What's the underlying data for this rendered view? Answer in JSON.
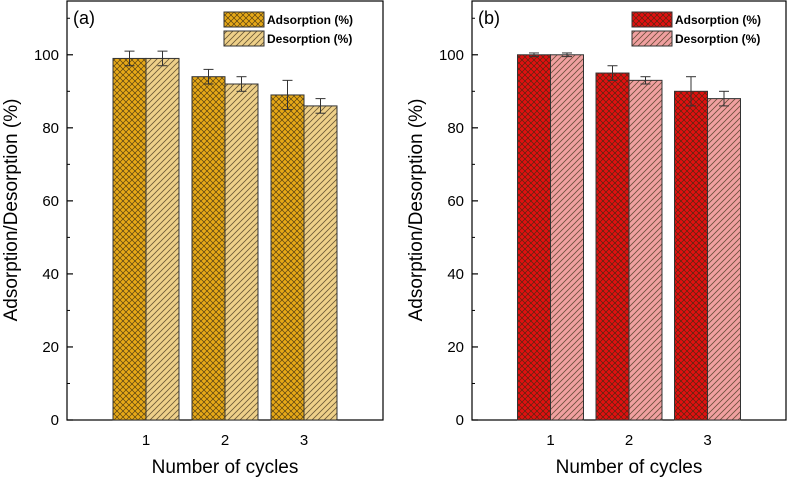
{
  "chart_data": [
    {
      "type": "bar",
      "panel_label": "(a)",
      "categories": [
        "1",
        "2",
        "3"
      ],
      "series": [
        {
          "name": "Adsorption (%)",
          "values": [
            99,
            94,
            89
          ],
          "errors": [
            2,
            2,
            4
          ],
          "color": "#E6A817",
          "pattern": "crosshatch"
        },
        {
          "name": "Desorption (%)",
          "values": [
            99,
            92,
            86
          ],
          "errors": [
            2,
            2,
            2
          ],
          "color": "#EED089",
          "pattern": "diagonal"
        }
      ],
      "xlabel": "Number of cycles",
      "ylabel": "Adsorption/Desorption (%)",
      "ylim": [
        0,
        115
      ],
      "yticks": [
        "0",
        "20",
        "40",
        "60",
        "80",
        "100"
      ],
      "legend": "top-right",
      "grid": false
    },
    {
      "type": "bar",
      "panel_label": "(b)",
      "categories": [
        "1",
        "2",
        "3"
      ],
      "series": [
        {
          "name": "Adsorption (%)",
          "values": [
            100,
            95,
            90
          ],
          "errors": [
            0.5,
            2,
            4
          ],
          "color": "#E01010",
          "pattern": "crosshatch"
        },
        {
          "name": "Desorption (%)",
          "values": [
            100,
            93,
            88
          ],
          "errors": [
            0.5,
            1,
            2
          ],
          "color": "#F0A0A0",
          "pattern": "diagonal"
        }
      ],
      "xlabel": "Number of cycles",
      "ylabel": "Adsorption/Desorption (%)",
      "ylim": [
        0,
        115
      ],
      "yticks": [
        "0",
        "20",
        "40",
        "60",
        "80",
        "100"
      ],
      "legend": "top-right",
      "grid": false
    }
  ]
}
